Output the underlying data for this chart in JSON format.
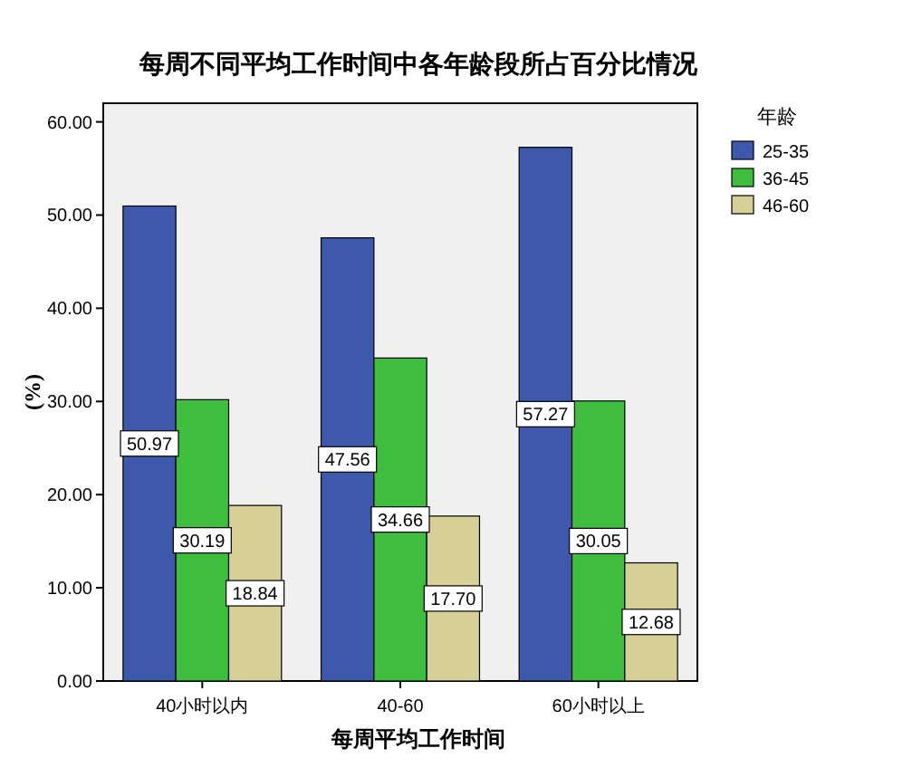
{
  "chart_data": {
    "type": "bar",
    "title": "每周不同平均工作时间中各年龄段所占百分比情况",
    "xlabel": "每周平均工作时间",
    "ylabel": "(%)",
    "legend_title": "年龄",
    "legend": "right",
    "categories": [
      "40小时以内",
      "40-60",
      "60小时以上"
    ],
    "ylim": [
      0,
      62
    ],
    "yticks": [
      {
        "value": 0,
        "label": "0.00"
      },
      {
        "value": 10,
        "label": "10.00"
      },
      {
        "value": 20,
        "label": "20.00"
      },
      {
        "value": 30,
        "label": "30.00"
      },
      {
        "value": 40,
        "label": "40.00"
      },
      {
        "value": 50,
        "label": "50.00"
      },
      {
        "value": 60,
        "label": "60.00"
      }
    ],
    "series": [
      {
        "name": "25-35",
        "color": "#3e58ac",
        "values": [
          50.97,
          47.56,
          57.27
        ],
        "value_labels": [
          "50.97",
          "47.56",
          "57.27"
        ]
      },
      {
        "name": "36-45",
        "color": "#3ebd3e",
        "values": [
          30.19,
          34.66,
          30.05
        ],
        "value_labels": [
          "30.19",
          "34.66",
          "30.05"
        ]
      },
      {
        "name": "46-60",
        "color": "#d6cf97",
        "values": [
          18.84,
          17.7,
          12.68
        ],
        "value_labels": [
          "18.84",
          "17.70",
          "12.68"
        ]
      }
    ]
  }
}
